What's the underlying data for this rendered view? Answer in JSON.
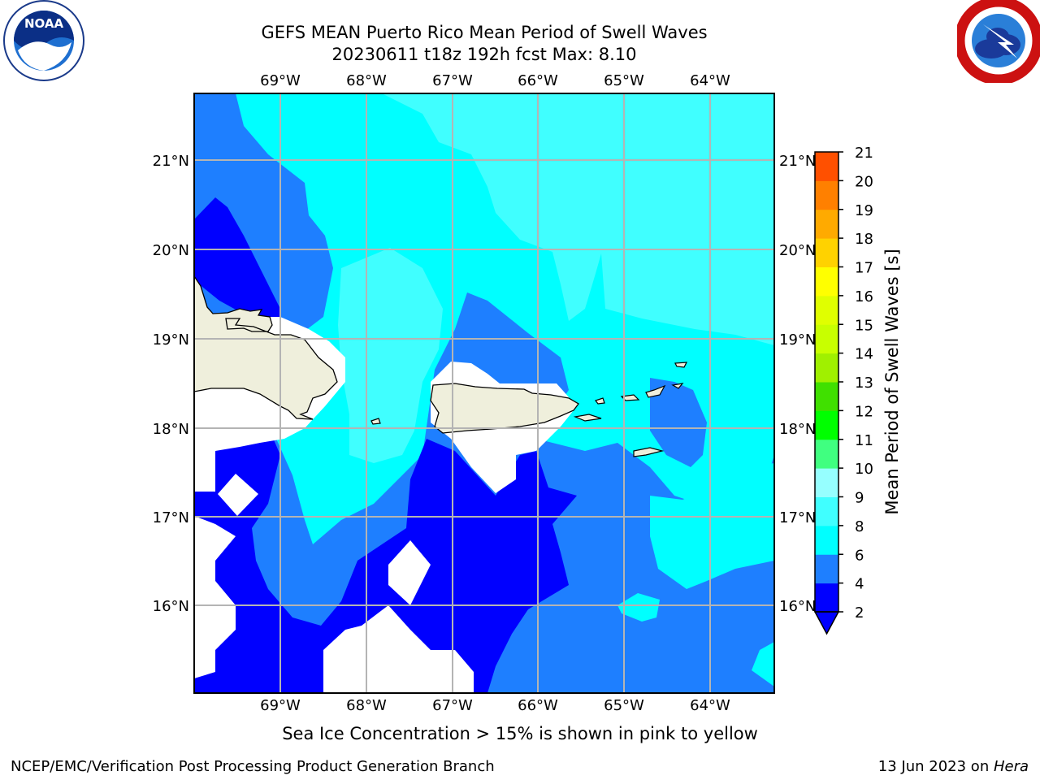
{
  "header": {
    "title_line1": "GEFS MEAN Puerto Rico Mean Period of Swell Waves",
    "title_line2": "20230611 t18z 192h fcst   Max: 8.10"
  },
  "logos": {
    "left": {
      "name": "noaa-logo",
      "text": "NOAA"
    },
    "right": {
      "name": "nws-logo"
    }
  },
  "map": {
    "lon_labels": [
      "69°W",
      "68°W",
      "67°W",
      "66°W",
      "65°W",
      "64°W"
    ],
    "lat_labels": [
      "21°N",
      "20°N",
      "19°N",
      "18°N",
      "17°N",
      "16°N"
    ]
  },
  "colorbar": {
    "label": "Mean Period of Swell Waves [s]",
    "ticks": [
      "2",
      "4",
      "6",
      "8",
      "9",
      "10",
      "11",
      "12",
      "13",
      "14",
      "15",
      "16",
      "17",
      "18",
      "19",
      "20",
      "21"
    ],
    "colors": [
      "#0000ff",
      "#1e7fff",
      "#00ffff",
      "#40ffff",
      "#96ffff",
      "#40ff80",
      "#00ff00",
      "#40e000",
      "#a0f000",
      "#c8ff00",
      "#e0ff00",
      "#ffff00",
      "#ffd200",
      "#ffaa00",
      "#ff8000",
      "#ff5000",
      "#ff2800",
      "#ff0000"
    ],
    "under_color": "#0000ff"
  },
  "caption": "Sea Ice Concentration > 15% is shown in pink to yellow",
  "footer": {
    "left": "NCEP/EMC/Verification Post Processing Product Generation Branch",
    "date": "13 Jun 2023 on ",
    "host": "Hera"
  }
}
